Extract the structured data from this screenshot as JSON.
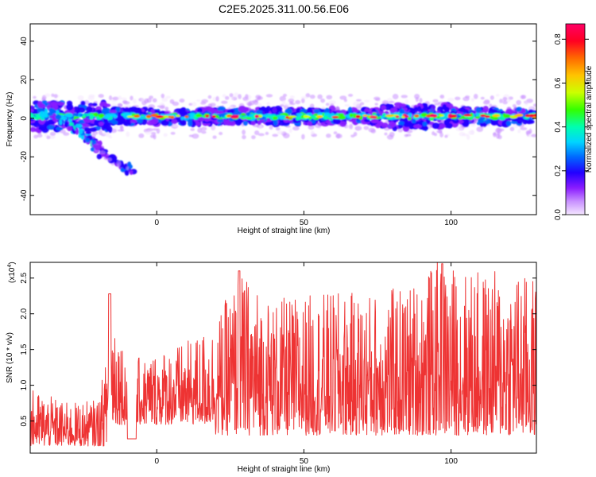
{
  "title": "C2E5.2025.311.00.56.E06",
  "chart_data": [
    {
      "type": "heatmap",
      "xlabel": "Height of straight line (km)",
      "ylabel": "Frequency (Hz)",
      "xlim": [
        -43,
        129
      ],
      "ylim": [
        -50,
        49
      ],
      "xticks": [
        0,
        50,
        100
      ],
      "yticks": [
        -40,
        -20,
        0,
        20,
        40
      ],
      "colorbar": {
        "label": "Normalized spectral amplitude",
        "range": [
          0.0,
          0.87
        ],
        "ticks": [
          "0.0",
          "0.2",
          "0.4",
          "0.6",
          "0.8"
        ],
        "colors": [
          "#f4e6ff",
          "#c890ff",
          "#8a1cff",
          "#2200ff",
          "#0066ff",
          "#00d4ff",
          "#00ffb0",
          "#33ff00",
          "#ccff00",
          "#ffc400",
          "#ff6a00",
          "#ff0022",
          "#ff0066"
        ]
      },
      "band": {
        "center_freq_hz": 1,
        "half_width_hz": 4,
        "descending_branch": [
          [
            -38,
            4
          ],
          [
            -30,
            -2
          ],
          [
            -25,
            -8
          ],
          [
            -21,
            -14
          ],
          [
            -17,
            -20
          ],
          [
            -12,
            -24
          ],
          [
            -9,
            -27
          ]
        ]
      }
    },
    {
      "type": "line",
      "xlabel": "Height of straight line (km)",
      "ylabel": "SNR (10 * v/v)",
      "yscale_label": "(x10",
      "yscale_exponent": "4",
      "xlim": [
        -43,
        129
      ],
      "ylim": [
        0.05,
        2.72
      ],
      "xticks": [
        0,
        50,
        100
      ],
      "yticks": [
        0.5,
        1.0,
        1.5,
        2.0,
        2.5
      ],
      "ytick_labels": [
        "0.5",
        "1.0",
        "1.5",
        "2.0",
        "2.5"
      ],
      "color": "#ee3333",
      "series": [
        {
          "name": "SNR",
          "x": [
            -43,
            -30,
            -20,
            -16,
            -15,
            -10,
            -5,
            0,
            10,
            20,
            28,
            40,
            55,
            70,
            85,
            95,
            100,
            110,
            120,
            129
          ],
          "envelope_max": [
            0.95,
            0.75,
            0.8,
            1.6,
            2.28,
            1.35,
            1.4,
            1.5,
            1.6,
            1.9,
            2.6,
            2.2,
            2.3,
            2.3,
            2.4,
            2.72,
            2.7,
            2.6,
            2.65,
            2.5
          ]
        }
      ]
    }
  ]
}
